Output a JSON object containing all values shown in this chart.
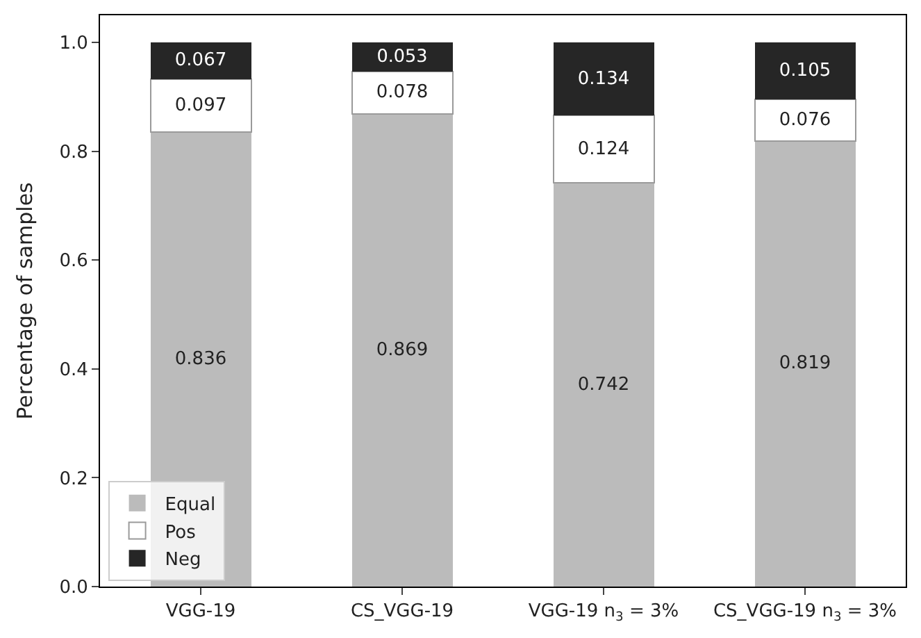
{
  "chart_data": {
    "type": "bar",
    "stacked": true,
    "ylabel": "Percentage of samples",
    "categories": [
      "VGG-19",
      "CS_VGG-19",
      "VGG-19 n$_{3}$ = 3%",
      "CS_VGG-19 n$_{3}$ = 3%"
    ],
    "series": [
      {
        "name": "Equal",
        "color": "#bbbbbb",
        "values": [
          0.836,
          0.869,
          0.742,
          0.819
        ]
      },
      {
        "name": "Pos",
        "color": "#ffffff",
        "values": [
          0.097,
          0.078,
          0.124,
          0.076
        ]
      },
      {
        "name": "Neg",
        "color": "#262626",
        "values": [
          0.067,
          0.053,
          0.134,
          0.105
        ]
      }
    ],
    "ylim": [
      0,
      1.05
    ],
    "yticks": [
      {
        "value": 0,
        "label": "0.0"
      },
      {
        "value": 0.2,
        "label": "0.2"
      },
      {
        "value": 0.4,
        "label": "0.4"
      },
      {
        "value": 0.6,
        "label": "0.6"
      },
      {
        "value": 0.8,
        "label": "0.8"
      },
      {
        "value": 1.0,
        "label": "1.0"
      }
    ],
    "data_labels": true,
    "legend": "bottom left"
  }
}
